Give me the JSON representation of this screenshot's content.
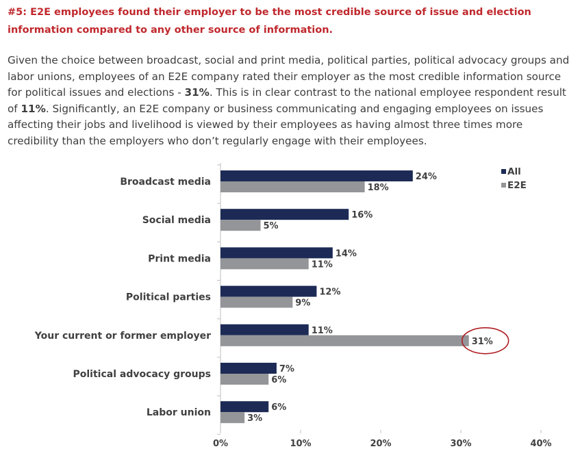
{
  "headline": "#5:  E2E employees found their employer to be the most credible source of issue and election information compared to any other source of information.",
  "intro": {
    "part1": "Given the choice between broadcast, social and print media, political parties, political advocacy groups and labor unions, employees of an E2E company rated their employer as the most credible information source for political issues and elections - ",
    "bold1": "31%",
    "part2": ".  This is in clear contrast to the national employee respondent result of ",
    "bold2": "11%",
    "part3": ". Significantly, an E2E company or business communicating and engaging employees on issues affecting their jobs and livelihood is viewed by their employees as having almost three times more credibility than the employers who don’t regularly engage with their employees."
  },
  "chart_data": {
    "type": "bar",
    "orientation": "horizontal",
    "categories": [
      "Broadcast media",
      "Social media",
      "Print media",
      "Political parties",
      "Your current or former employer",
      "Political advocacy groups",
      "Labor union"
    ],
    "series": [
      {
        "name": "All",
        "values": [
          24,
          16,
          14,
          12,
          11,
          7,
          6
        ],
        "color": "#1c2a55"
      },
      {
        "name": "E2E",
        "values": [
          18,
          5,
          11,
          9,
          31,
          6,
          3
        ],
        "color": "#939598"
      }
    ],
    "value_suffix": "%",
    "xlim": [
      0,
      40
    ],
    "ticks": [
      0,
      10,
      20,
      30,
      40
    ],
    "grid": false,
    "legend_position": "top-right",
    "highlight": {
      "series": "E2E",
      "category": "Your current or former employer",
      "shape": "circle",
      "color": "#b01e24"
    }
  }
}
